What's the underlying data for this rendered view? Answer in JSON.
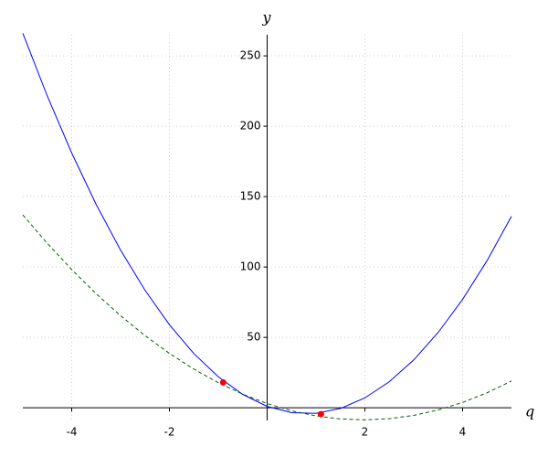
{
  "chart_data": {
    "type": "line",
    "x_label": "q",
    "y_label": "y",
    "xlim": [
      -5,
      5
    ],
    "ylim": [
      -9,
      265
    ],
    "xticks": [
      -4,
      -2,
      2,
      4
    ],
    "yticks": [
      50,
      100,
      150,
      200,
      250
    ],
    "grid": true,
    "x": [
      -5,
      -4.5,
      -4,
      -3.5,
      -3,
      -2.5,
      -2,
      -1.5,
      -1,
      -0.5,
      0,
      0.5,
      1,
      1.5,
      2,
      2.5,
      3,
      3.5,
      4,
      4.5,
      5
    ],
    "series": [
      {
        "color": "#0000ff",
        "style": "solid",
        "values": [
          266,
          221.5,
          181,
          144.5,
          112,
          83.5,
          59,
          38.5,
          22,
          9.5,
          1,
          -3.5,
          -4,
          -0.5,
          7,
          18.5,
          34,
          53.5,
          77,
          104.5,
          136
        ]
      },
      {
        "color": "#006400",
        "style": "dashed",
        "values": [
          137,
          116.85,
          98.2,
          81.05,
          65.4,
          51.25,
          38.6,
          27.45,
          17.8,
          9.65,
          3,
          -2.15,
          -5.8,
          -7.95,
          -8.6,
          -7.75,
          -5.4,
          -1.55,
          3.8,
          10.65,
          19
        ]
      },
      {
        "color": "#ff0000",
        "style": "markers",
        "x": [
          -0.9,
          1.1
        ],
        "values": [
          18,
          -4.5
        ]
      }
    ]
  }
}
